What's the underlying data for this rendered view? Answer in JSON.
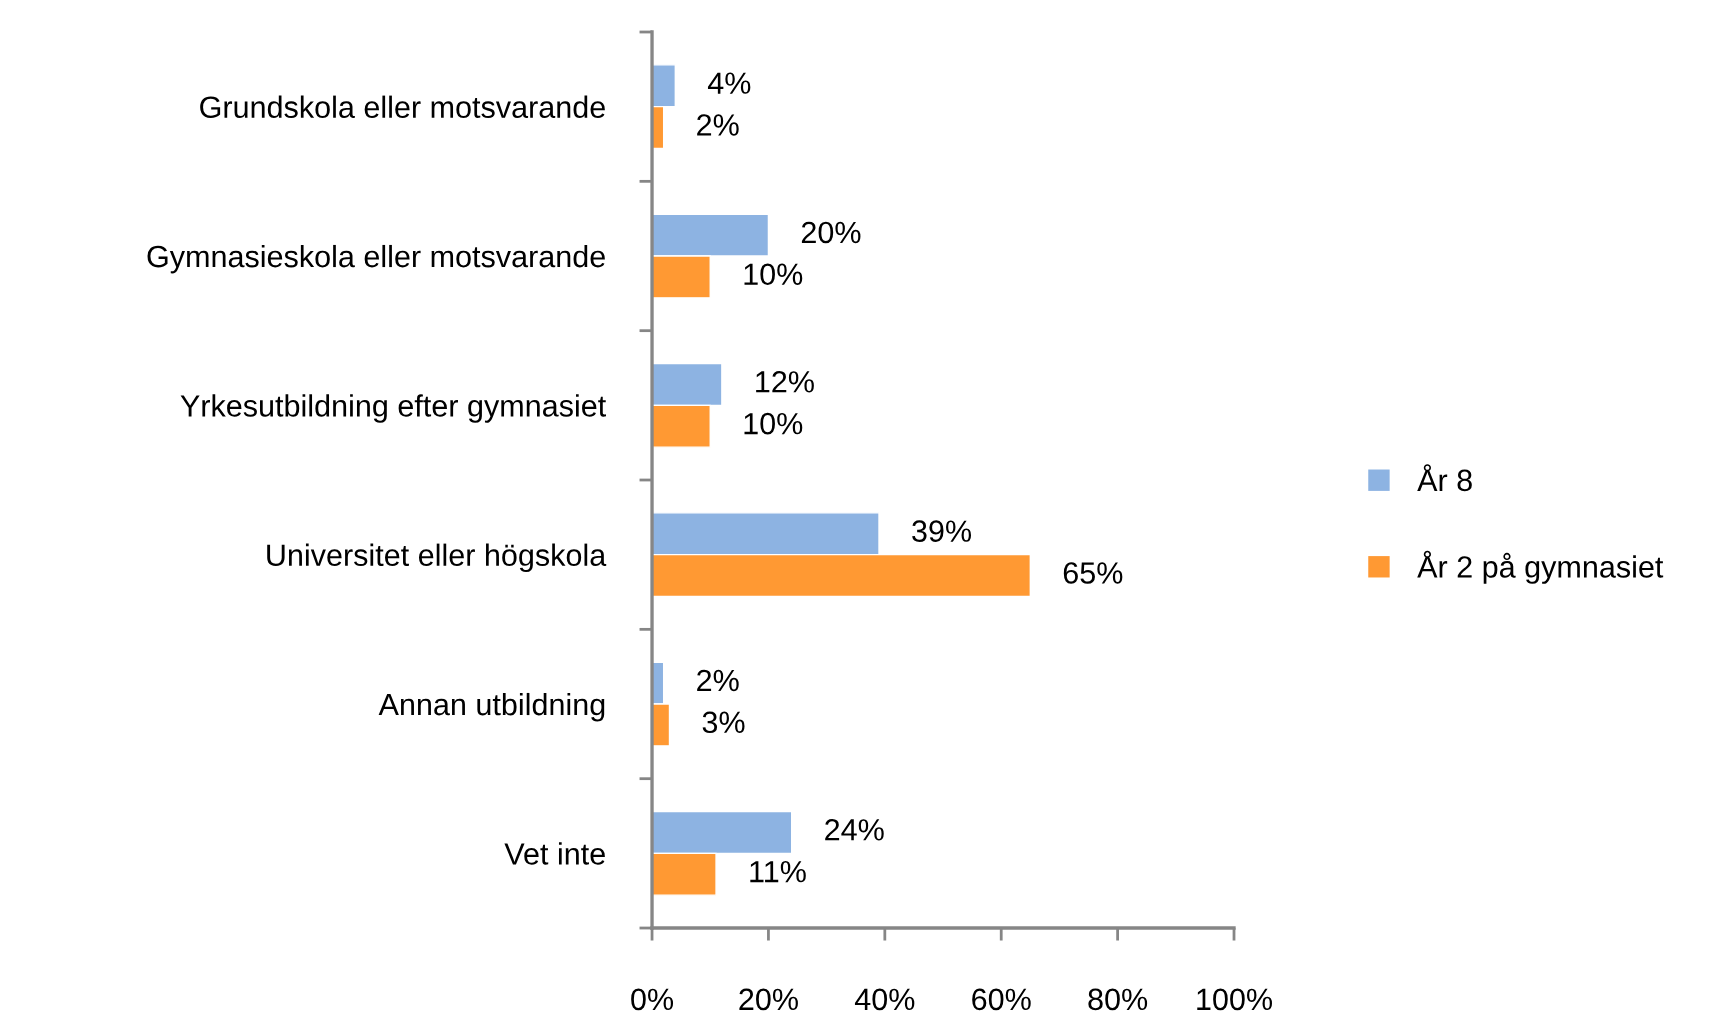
{
  "chart_data": {
    "type": "bar",
    "orientation": "horizontal",
    "categories": [
      "Grundskola eller motsvarande",
      "Gymnasieskola eller motsvarande",
      "Yrkesutbildning efter gymnasiet",
      "Universitet eller högskola",
      "Annan utbildning",
      "Vet inte"
    ],
    "series": [
      {
        "name": "År 8",
        "color": "#8db3e2",
        "values": [
          4,
          20,
          12,
          39,
          2,
          24
        ],
        "value_labels": [
          "4%",
          "20%",
          "12%",
          "39%",
          "2%",
          "24%"
        ]
      },
      {
        "name": "År 2 på gymnasiet",
        "color": "#ff9933",
        "values": [
          2,
          10,
          10,
          65,
          3,
          11
        ],
        "value_labels": [
          "2%",
          "10%",
          "10%",
          "65%",
          "3%",
          "11%"
        ]
      }
    ],
    "xlim": [
      0,
      100
    ],
    "xticks": [
      {
        "value": 0,
        "label": "0%"
      },
      {
        "value": 20,
        "label": "20%"
      },
      {
        "value": 40,
        "label": "40%"
      },
      {
        "value": 60,
        "label": "60%"
      },
      {
        "value": 80,
        "label": "80%"
      },
      {
        "value": 100,
        "label": "100%"
      }
    ],
    "legend": "right"
  }
}
